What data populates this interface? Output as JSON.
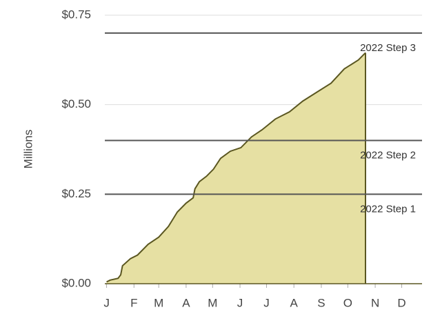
{
  "chart_data": {
    "type": "area",
    "y_label": "Millions",
    "x": [
      1,
      5,
      14,
      17,
      19,
      28,
      36,
      48,
      60,
      71,
      81,
      91,
      99,
      101,
      106,
      114,
      122,
      130,
      141,
      153,
      165,
      177,
      192,
      208,
      223,
      239,
      255,
      270,
      286,
      294
    ],
    "values": [
      0.005,
      0.01,
      0.015,
      0.025,
      0.05,
      0.07,
      0.08,
      0.11,
      0.13,
      0.16,
      0.2,
      0.225,
      0.24,
      0.265,
      0.285,
      0.3,
      0.32,
      0.35,
      0.37,
      0.38,
      0.41,
      0.43,
      0.46,
      0.48,
      0.51,
      0.535,
      0.56,
      0.6,
      0.625,
      0.645
    ],
    "color": "#e6e0a3",
    "line_color": "#5a5620",
    "xlim": [
      -1,
      358
    ],
    "xticks": [
      {
        "value": 1,
        "label": "J"
      },
      {
        "value": 32,
        "label": "F"
      },
      {
        "value": 60,
        "label": "M"
      },
      {
        "value": 91,
        "label": "A"
      },
      {
        "value": 121,
        "label": "M"
      },
      {
        "value": 152,
        "label": "J"
      },
      {
        "value": 182,
        "label": "J"
      },
      {
        "value": 213,
        "label": "A"
      },
      {
        "value": 244,
        "label": "S"
      },
      {
        "value": 274,
        "label": "O"
      },
      {
        "value": 305,
        "label": "N"
      },
      {
        "value": 335,
        "label": "D"
      }
    ],
    "ylim": [
      0,
      0.75
    ],
    "yticks": [
      {
        "value": 0,
        "label": "$0.00"
      },
      {
        "value": 0.25,
        "label": "$0.25"
      },
      {
        "value": 0.5,
        "label": "$0.50"
      },
      {
        "value": 0.75,
        "label": "$0.75"
      }
    ],
    "grid": true,
    "reference_lines": [
      {
        "value": 0.7,
        "label": "2022 Step 3"
      },
      {
        "value": 0.4,
        "label": "2022 Step 2"
      },
      {
        "value": 0.25,
        "label": "2022 Step 1"
      }
    ]
  }
}
